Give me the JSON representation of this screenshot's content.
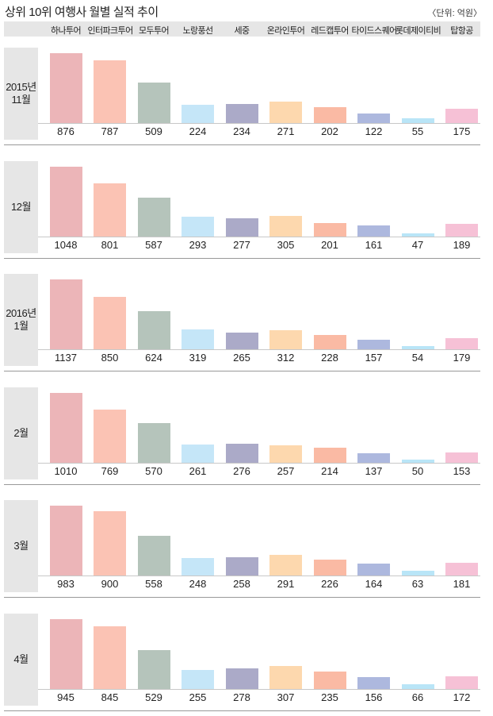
{
  "title": "상위 10위 여행사 월별 실적 추이",
  "unit": "〈단위: 억원〉",
  "chart_data": {
    "type": "bar",
    "title": "상위 10위 여행사 월별 실적 추이",
    "ylabel": "억원",
    "categories": [
      "하나투어",
      "인터파크투어",
      "모두투어",
      "노랑풍선",
      "세중",
      "온라인투어",
      "레드캡투어",
      "타이드스퀘어",
      "롯데제이티비",
      "탑항공"
    ],
    "colors": [
      "#ecb5b8",
      "#fbc3b4",
      "#b5c4bb",
      "#c5e6f8",
      "#abaac8",
      "#fdd8ae",
      "#fabaa4",
      "#adb8de",
      "#b9e5f7",
      "#f6c1d6"
    ],
    "series": [
      {
        "name": "2015년\n11월",
        "values": [
          876,
          787,
          509,
          224,
          234,
          271,
          202,
          122,
          55,
          175
        ]
      },
      {
        "name": "12월",
        "values": [
          1048,
          801,
          587,
          293,
          277,
          305,
          201,
          161,
          47,
          189
        ]
      },
      {
        "name": "2016년\n1월",
        "values": [
          1137,
          850,
          624,
          319,
          265,
          312,
          228,
          157,
          54,
          179
        ]
      },
      {
        "name": "2월",
        "values": [
          1010,
          769,
          570,
          261,
          276,
          257,
          214,
          137,
          50,
          153
        ]
      },
      {
        "name": "3월",
        "values": [
          983,
          900,
          558,
          248,
          258,
          291,
          226,
          164,
          63,
          181
        ]
      },
      {
        "name": "4월",
        "values": [
          945,
          845,
          529,
          255,
          278,
          307,
          235,
          156,
          66,
          172
        ]
      }
    ]
  }
}
